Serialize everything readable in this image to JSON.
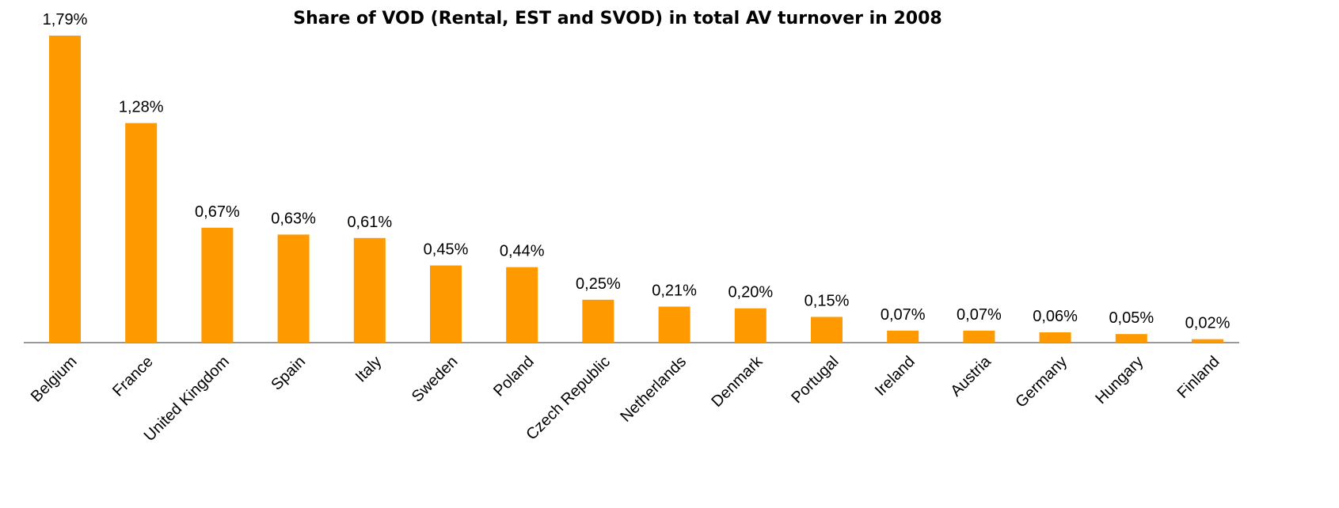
{
  "chart_data": {
    "type": "bar",
    "title": "Share of VOD (Rental, EST and SVOD) in total AV turnover in 2008",
    "categories": [
      "Belgium",
      "France",
      "United Kingdom",
      "Spain",
      "Italy",
      "Sweden",
      "Poland",
      "Czech Republic",
      "Netherlands",
      "Denmark",
      "Portugal",
      "Ireland",
      "Austria",
      "Germany",
      "Hungary",
      "Finland"
    ],
    "values": [
      1.79,
      1.28,
      0.67,
      0.63,
      0.61,
      0.45,
      0.44,
      0.25,
      0.21,
      0.2,
      0.15,
      0.07,
      0.07,
      0.06,
      0.05,
      0.02
    ],
    "value_labels": [
      "1,79%",
      "1,28%",
      "0,67%",
      "0,63%",
      "0,61%",
      "0,45%",
      "0,44%",
      "0,25%",
      "0,21%",
      "0,20%",
      "0,15%",
      "0,07%",
      "0,07%",
      "0,06%",
      "0,05%",
      "0,02%"
    ],
    "color": "#ff9900"
  }
}
